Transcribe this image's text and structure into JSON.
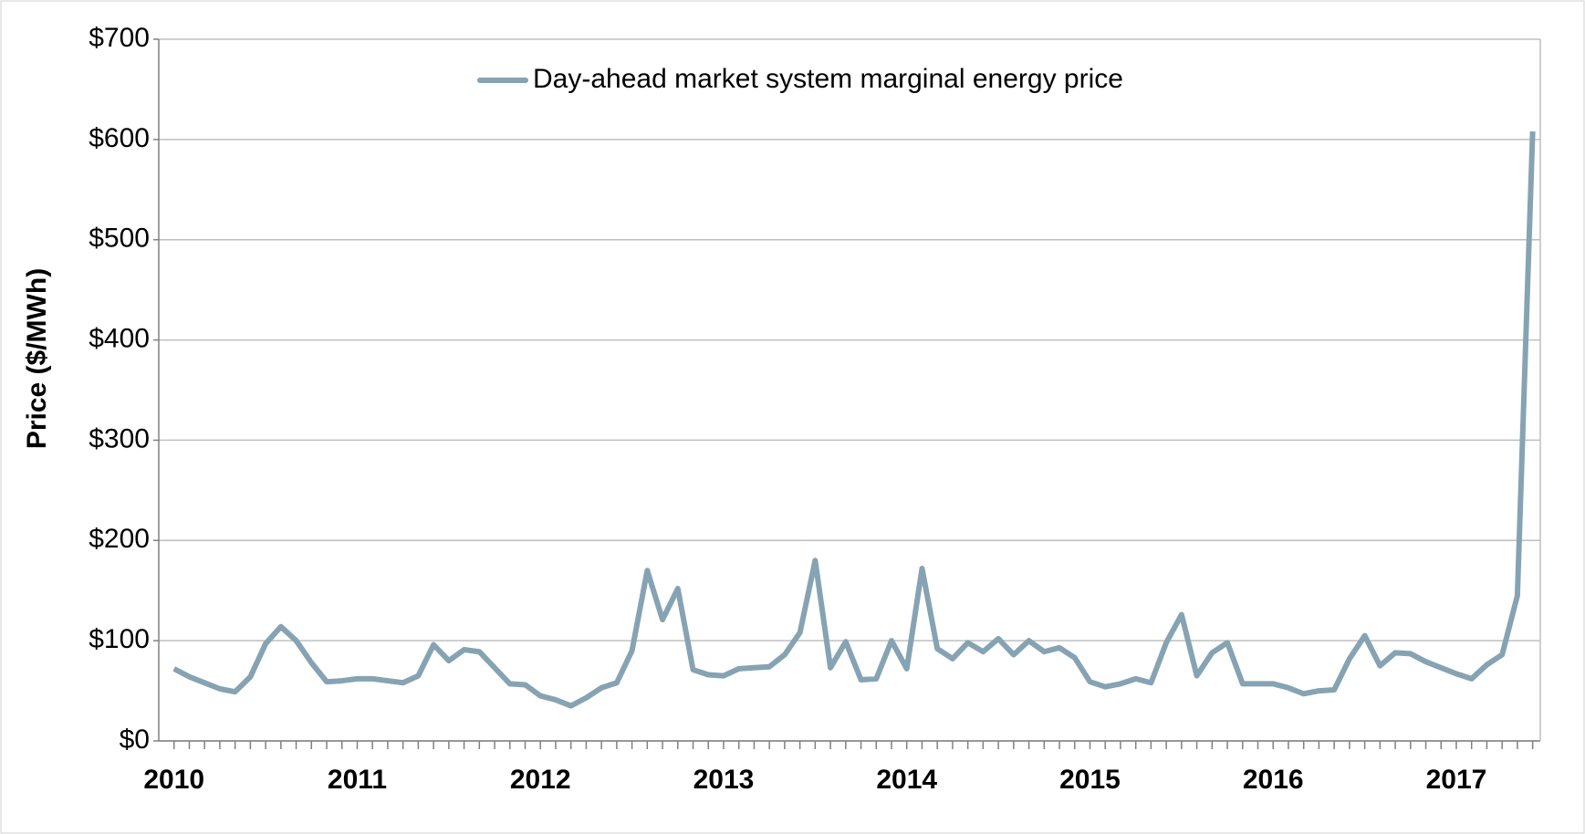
{
  "chart_data": {
    "type": "line",
    "y_label": "Price ($/MWh)",
    "categories": [
      "2010",
      null,
      null,
      null,
      null,
      null,
      null,
      null,
      null,
      null,
      null,
      null,
      "2011",
      null,
      null,
      null,
      null,
      null,
      null,
      null,
      null,
      null,
      null,
      null,
      "2012",
      null,
      null,
      null,
      null,
      null,
      null,
      null,
      null,
      null,
      null,
      null,
      "2013",
      null,
      null,
      null,
      null,
      null,
      null,
      null,
      null,
      null,
      null,
      null,
      "2014",
      null,
      null,
      null,
      null,
      null,
      null,
      null,
      null,
      null,
      null,
      null,
      "2015",
      null,
      null,
      null,
      null,
      null,
      null,
      null,
      null,
      null,
      null,
      null,
      "2016",
      null,
      null,
      null,
      null,
      null,
      null,
      null,
      null,
      null,
      null,
      null,
      "2017",
      null,
      null,
      null,
      null,
      null
    ],
    "series": [
      {
        "name": "Day-ahead market system marginal energy price",
        "color": "#86a3b3",
        "values": [
          72,
          64,
          58,
          52,
          49,
          64,
          97,
          114,
          100,
          78,
          59,
          60,
          62,
          62,
          60,
          58,
          65,
          96,
          80,
          91,
          89,
          73,
          57,
          56,
          45,
          41,
          35,
          43,
          53,
          58,
          90,
          170,
          121,
          152,
          71,
          66,
          65,
          72,
          73,
          74,
          86,
          108,
          180,
          73,
          99,
          61,
          62,
          100,
          72,
          172,
          92,
          82,
          98,
          89,
          102,
          86,
          100,
          89,
          93,
          83,
          59,
          54,
          57,
          62,
          58,
          98,
          126,
          65,
          88,
          98,
          57,
          57,
          57,
          53,
          47,
          50,
          51,
          82,
          105,
          75,
          88,
          87,
          79,
          73,
          67,
          62,
          76,
          86,
          145,
          608
        ]
      }
    ],
    "ylim": [
      0,
      700
    ],
    "yticks": [
      {
        "value": 0,
        "label": "$0"
      },
      {
        "value": 100,
        "label": "$100"
      },
      {
        "value": 200,
        "label": "$200"
      },
      {
        "value": 300,
        "label": "$300"
      },
      {
        "value": 400,
        "label": "$400"
      },
      {
        "value": 500,
        "label": "$500"
      },
      {
        "value": 600,
        "label": "$600"
      },
      {
        "value": 700,
        "label": "$700"
      }
    ],
    "grid": true,
    "legend": "top"
  }
}
